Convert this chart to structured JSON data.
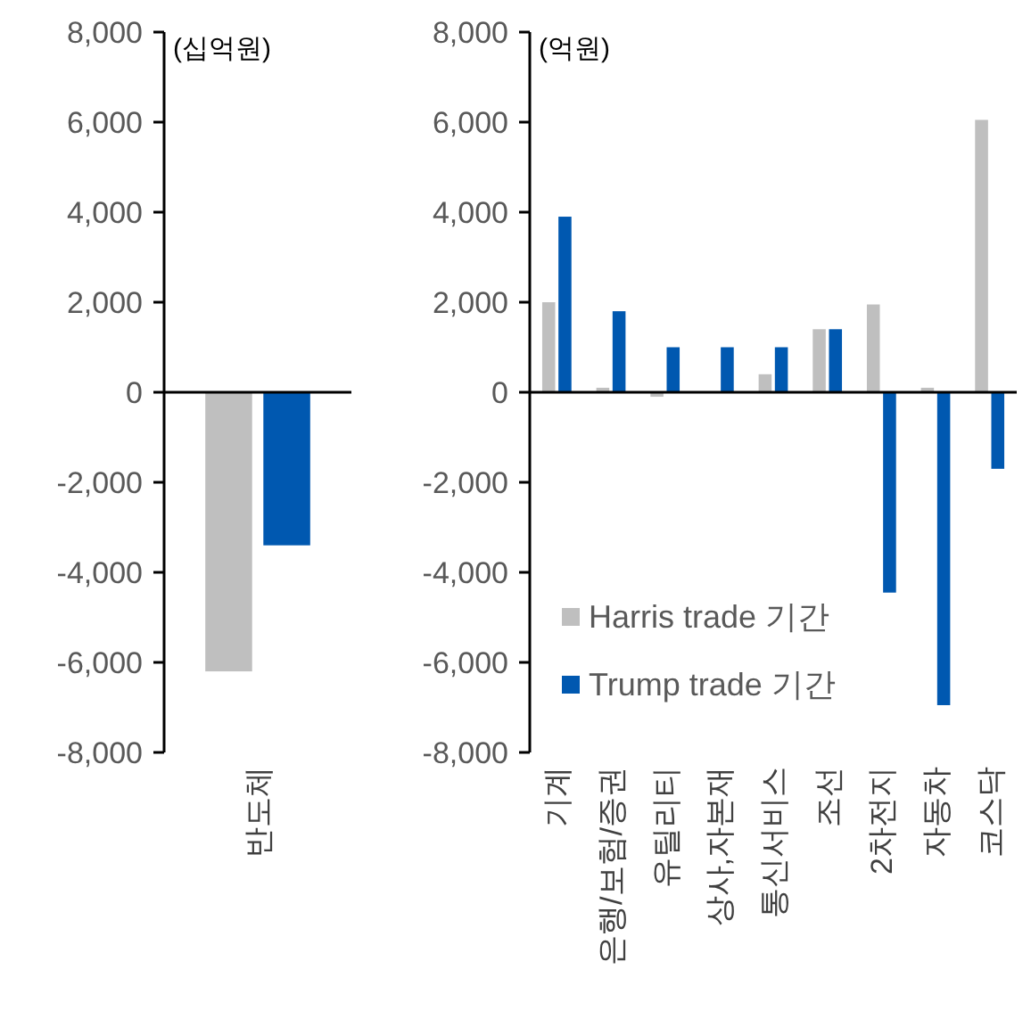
{
  "chart_data": [
    {
      "type": "bar",
      "ylabel": "(십억원)",
      "categories": [
        "반도체"
      ],
      "series": [
        {
          "color": "#bfbfbf",
          "values": [
            -6200
          ]
        },
        {
          "color": "#0058b0",
          "values": [
            -3400
          ]
        }
      ],
      "ylim": [
        -8000,
        8000
      ],
      "yticks": [
        {
          "value": -8000,
          "label": "-8,000"
        },
        {
          "value": -6000,
          "label": "-6,000"
        },
        {
          "value": -4000,
          "label": "-4,000"
        },
        {
          "value": -2000,
          "label": "-2,000"
        },
        0,
        {
          "value": 2000,
          "label": "2,000"
        },
        {
          "value": 4000,
          "label": "4,000"
        },
        {
          "value": 6000,
          "label": "6,000"
        },
        {
          "value": 8000,
          "label": "8,000"
        }
      ]
    },
    {
      "type": "bar",
      "ylabel": "(억원)",
      "categories": [
        "기계",
        "은행/보험/증권",
        "유틸리티",
        "상사,자본재",
        "통신서비스",
        "조선",
        "2차전지",
        "자동차",
        "코스닥"
      ],
      "series": [
        {
          "name": "Harris trade 기간",
          "color": "#bfbfbf",
          "values": [
            2000,
            100,
            -100,
            0,
            400,
            1400,
            1950,
            100,
            6050
          ]
        },
        {
          "name": "Trump trade 기간",
          "color": "#0058b0",
          "values": [
            3900,
            1800,
            1000,
            1000,
            1000,
            1400,
            -4450,
            -6950,
            -1700
          ]
        }
      ],
      "ylim": [
        -8000,
        8000
      ],
      "yticks": [
        {
          "value": -8000,
          "label": "-8,000"
        },
        {
          "value": -6000,
          "label": "-6,000"
        },
        {
          "value": -4000,
          "label": "-4,000"
        },
        {
          "value": -2000,
          "label": "-2,000"
        },
        0,
        {
          "value": 2000,
          "label": "2,000"
        },
        {
          "value": 4000,
          "label": "4,000"
        },
        {
          "value": 6000,
          "label": "6,000"
        },
        {
          "value": 8000,
          "label": "8,000"
        }
      ],
      "legend": "bottom left"
    }
  ]
}
